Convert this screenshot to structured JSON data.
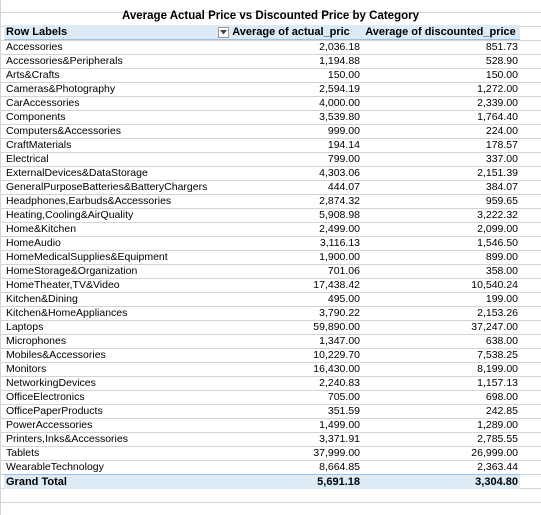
{
  "title": "Average Actual Price vs Discounted Price by Category",
  "header": {
    "row_labels": "Row Labels",
    "col_actual": "Average of actual_pric",
    "col_discounted": "Average of discounted_price"
  },
  "rows": [
    {
      "label": "Accessories",
      "actual": "2,036.18",
      "discounted": "851.73"
    },
    {
      "label": "Accessories&Peripherals",
      "actual": "1,194.88",
      "discounted": "528.90"
    },
    {
      "label": "Arts&Crafts",
      "actual": "150.00",
      "discounted": "150.00"
    },
    {
      "label": "Cameras&Photography",
      "actual": "2,594.19",
      "discounted": "1,272.00"
    },
    {
      "label": "CarAccessories",
      "actual": "4,000.00",
      "discounted": "2,339.00"
    },
    {
      "label": "Components",
      "actual": "3,539.80",
      "discounted": "1,764.40"
    },
    {
      "label": "Computers&Accessories",
      "actual": "999.00",
      "discounted": "224.00"
    },
    {
      "label": "CraftMaterials",
      "actual": "194.14",
      "discounted": "178.57"
    },
    {
      "label": "Electrical",
      "actual": "799.00",
      "discounted": "337.00"
    },
    {
      "label": "ExternalDevices&DataStorage",
      "actual": "4,303.06",
      "discounted": "2,151.39"
    },
    {
      "label": "GeneralPurposeBatteries&BatteryChargers",
      "actual": "444.07",
      "discounted": "384.07"
    },
    {
      "label": "Headphones,Earbuds&Accessories",
      "actual": "2,874.32",
      "discounted": "959.65"
    },
    {
      "label": "Heating,Cooling&AirQuality",
      "actual": "5,908.98",
      "discounted": "3,222.32"
    },
    {
      "label": "Home&Kitchen",
      "actual": "2,499.00",
      "discounted": "2,099.00"
    },
    {
      "label": "HomeAudio",
      "actual": "3,116.13",
      "discounted": "1,546.50"
    },
    {
      "label": "HomeMedicalSupplies&Equipment",
      "actual": "1,900.00",
      "discounted": "899.00"
    },
    {
      "label": "HomeStorage&Organization",
      "actual": "701.06",
      "discounted": "358.00"
    },
    {
      "label": "HomeTheater,TV&Video",
      "actual": "17,438.42",
      "discounted": "10,540.24"
    },
    {
      "label": "Kitchen&Dining",
      "actual": "495.00",
      "discounted": "199.00"
    },
    {
      "label": "Kitchen&HomeAppliances",
      "actual": "3,790.22",
      "discounted": "2,153.26"
    },
    {
      "label": "Laptops",
      "actual": "59,890.00",
      "discounted": "37,247.00"
    },
    {
      "label": "Microphones",
      "actual": "1,347.00",
      "discounted": "638.00"
    },
    {
      "label": "Mobiles&Accessories",
      "actual": "10,229.70",
      "discounted": "7,538.25"
    },
    {
      "label": "Monitors",
      "actual": "16,430.00",
      "discounted": "8,199.00"
    },
    {
      "label": "NetworkingDevices",
      "actual": "2,240.83",
      "discounted": "1,157.13"
    },
    {
      "label": "OfficeElectronics",
      "actual": "705.00",
      "discounted": "698.00"
    },
    {
      "label": "OfficePaperProducts",
      "actual": "351.59",
      "discounted": "242.85"
    },
    {
      "label": "PowerAccessories",
      "actual": "1,499.00",
      "discounted": "1,289.00"
    },
    {
      "label": "Printers,Inks&Accessories",
      "actual": "3,371.91",
      "discounted": "2,785.55"
    },
    {
      "label": "Tablets",
      "actual": "37,999.00",
      "discounted": "26,999.00"
    },
    {
      "label": "WearableTechnology",
      "actual": "8,664.85",
      "discounted": "2,363.44"
    }
  ],
  "total": {
    "label": "Grand Total",
    "actual": "5,691.18",
    "discounted": "3,304.80"
  },
  "icons": {
    "filter": "filter-dropdown-icon"
  },
  "colors": {
    "header_bg": "#ddebf7",
    "header_border": "#9bc2e6",
    "grid": "#d4d4d4"
  }
}
